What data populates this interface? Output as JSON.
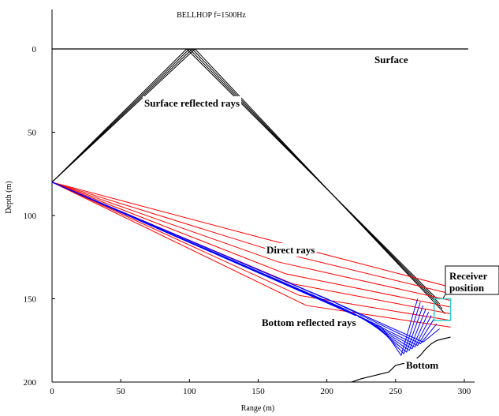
{
  "chart_data": {
    "type": "line",
    "title": "BELLHOP f=1500Hz",
    "xlabel": "Range (m)",
    "ylabel": "Depth (m)",
    "xlim": [
      0,
      300
    ],
    "ylim": [
      200,
      -10
    ],
    "y_inverted": true,
    "grid": false,
    "xticks": [
      0,
      50,
      100,
      150,
      200,
      250,
      300
    ],
    "yticks": [
      0,
      50,
      100,
      150,
      200
    ],
    "surface_line": {
      "x": [
        0,
        310
      ],
      "depth": 0
    },
    "source": {
      "x": 0,
      "y": 80
    },
    "annotations": {
      "surface": "Surface",
      "surface_reflected": "Surface reflected rays",
      "direct": "Direct rays",
      "receiver_line1": "Receiver",
      "receiver_line2": "position",
      "bottom_reflected": "Bottom reflected rays",
      "bottom": "Bottom"
    },
    "receiver_box": {
      "x": [
        278,
        290
      ],
      "y": [
        150,
        163
      ]
    },
    "colors": {
      "surface_rays": "#000000",
      "direct_rays": "#ff0000",
      "bottom_rays": "#0000ff",
      "receiver_box": "#33cccc",
      "axes": "#000000"
    },
    "bottom_profile": {
      "x": [
        218,
        225,
        235,
        245,
        250,
        255,
        262,
        268,
        272,
        276,
        280,
        285,
        290
      ],
      "y": [
        200,
        198,
        196,
        194,
        190,
        189,
        188,
        184,
        180,
        177,
        175,
        174,
        173
      ]
    },
    "series": [
      {
        "group": "surface_reflected",
        "paths": [
          {
            "x": [
              0,
              98,
              280
            ],
            "y": [
              80,
              0,
              150
            ]
          },
          {
            "x": [
              0,
              100,
              282
            ],
            "y": [
              80,
              0,
              153
            ]
          },
          {
            "x": [
              0,
              102,
              284
            ],
            "y": [
              80,
              0,
              156
            ]
          },
          {
            "x": [
              0,
              104,
              286
            ],
            "y": [
              80,
              0,
              159
            ]
          }
        ]
      },
      {
        "group": "direct",
        "paths": [
          {
            "x": [
              0,
              155,
              290
            ],
            "y": [
              80,
              114,
              143
            ]
          },
          {
            "x": [
              0,
              160,
              290
            ],
            "y": [
              80,
              121,
              147
            ]
          },
          {
            "x": [
              0,
              165,
              290
            ],
            "y": [
              80,
              128,
              151
            ]
          },
          {
            "x": [
              0,
              170,
              290
            ],
            "y": [
              80,
              135,
              155
            ]
          },
          {
            "x": [
              0,
              175,
              290
            ],
            "y": [
              80,
              141,
              159
            ]
          },
          {
            "x": [
              0,
              180,
              290
            ],
            "y": [
              80,
              148,
              163
            ]
          },
          {
            "x": [
              0,
              185,
              290
            ],
            "y": [
              80,
              154,
              167
            ]
          }
        ]
      },
      {
        "group": "bottom_reflected",
        "paths": [
          {
            "x": [
              0,
              200,
              270,
              282
            ],
            "y": [
              80,
              150,
              176,
              168
            ]
          },
          {
            "x": [
              0,
              205,
              268,
              280
            ],
            "y": [
              80,
              152,
              177,
              165
            ]
          },
          {
            "x": [
              0,
              210,
              266,
              278
            ],
            "y": [
              80,
              155,
              178,
              162
            ]
          },
          {
            "x": [
              0,
              215,
              264,
              276
            ],
            "y": [
              80,
              157,
              179,
              160
            ]
          },
          {
            "x": [
              0,
              220,
              262,
              274
            ],
            "y": [
              80,
              159,
              180,
              158
            ]
          },
          {
            "x": [
              0,
              225,
              260,
              272
            ],
            "y": [
              80,
              161,
              181,
              156
            ]
          },
          {
            "x": [
              0,
              230,
              258,
              270
            ],
            "y": [
              80,
              163,
              182,
              154
            ]
          },
          {
            "x": [
              0,
              235,
              256,
              268
            ],
            "y": [
              80,
              165,
              183,
              152
            ]
          },
          {
            "x": [
              0,
              240,
              254,
              266
            ],
            "y": [
              80,
              167,
              184,
              150
            ]
          }
        ]
      }
    ]
  }
}
